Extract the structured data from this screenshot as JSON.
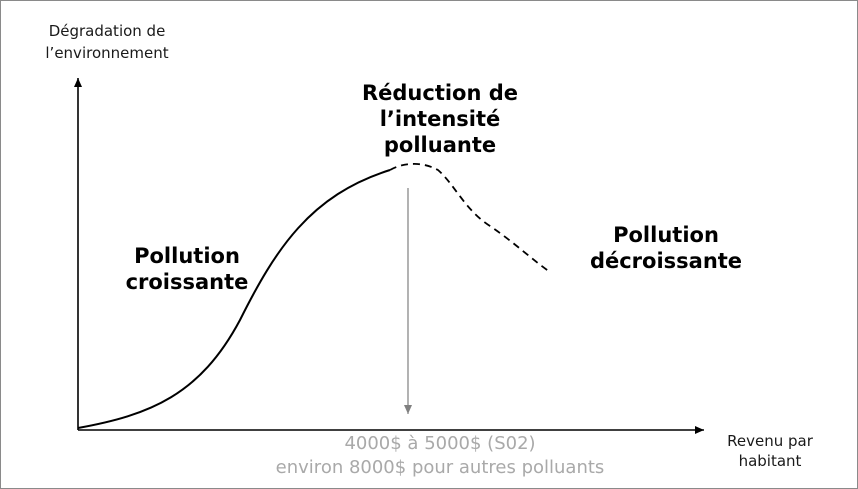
{
  "axes": {
    "y_label_line1": "Dégradation de",
    "y_label_line2": "l’environnement",
    "x_label_line1": "Revenu par",
    "x_label_line2": "habitant"
  },
  "curve_labels": {
    "peak_line1": "Réduction de",
    "peak_line2": "l’intensité",
    "peak_line3": "polluante",
    "rising_line1": "Pollution",
    "rising_line2": "croissante",
    "falling_line1": "Pollution",
    "falling_line2": "décroissante"
  },
  "threshold": {
    "line1": "4000$ à 5000$ (S02)",
    "line2": "environ 8000$ pour autres polluants"
  },
  "colors": {
    "curve": "#000000",
    "axis": "#000000",
    "threshold_arrow": "#808080",
    "threshold_text": "#a9a9a9",
    "frame": "#8a8a8a"
  }
}
